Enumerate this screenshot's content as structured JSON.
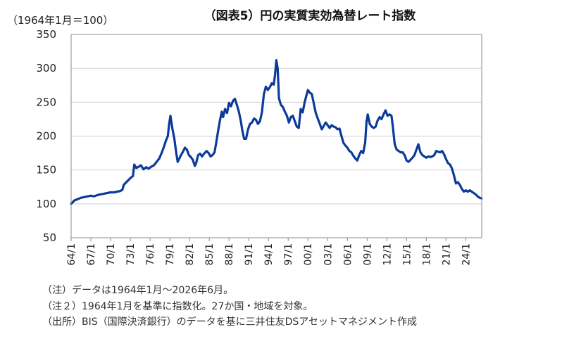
{
  "chart_data": {
    "type": "line",
    "title": "（図表5）円の実質実効為替レート指数",
    "unit_label": "（1964年1月＝100）",
    "xlabel": "",
    "ylabel": "",
    "ylim": [
      50,
      350
    ],
    "yticks": [
      "350",
      "300",
      "250",
      "200",
      "150",
      "100",
      "50"
    ],
    "xticks": [
      "64/1",
      "67/1",
      "70/1",
      "73/1",
      "76/1",
      "79/1",
      "82/1",
      "85/1",
      "88/1",
      "91/1",
      "94/1",
      "97/1",
      "00/1",
      "03/1",
      "06/1",
      "09/1",
      "12/1",
      "15/1",
      "18/1",
      "21/1",
      "24/1"
    ],
    "xlim": [
      1964.0,
      2026.42
    ],
    "grid": true,
    "series": [
      {
        "color": "#0b3a9a",
        "points": [
          [
            1964.0,
            100
          ],
          [
            1964.5,
            105
          ],
          [
            1965.0,
            107
          ],
          [
            1965.5,
            109
          ],
          [
            1966.0,
            110
          ],
          [
            1966.5,
            111
          ],
          [
            1967.0,
            112
          ],
          [
            1967.5,
            111
          ],
          [
            1968.0,
            113
          ],
          [
            1968.5,
            114
          ],
          [
            1969.0,
            115
          ],
          [
            1969.5,
            116
          ],
          [
            1970.0,
            117
          ],
          [
            1970.5,
            117
          ],
          [
            1971.0,
            118
          ],
          [
            1971.5,
            119
          ],
          [
            1971.8,
            121
          ],
          [
            1972.0,
            128
          ],
          [
            1972.5,
            133
          ],
          [
            1973.0,
            138
          ],
          [
            1973.4,
            141
          ],
          [
            1973.6,
            158
          ],
          [
            1973.9,
            153
          ],
          [
            1974.3,
            155
          ],
          [
            1974.6,
            157
          ],
          [
            1975.0,
            151
          ],
          [
            1975.4,
            154
          ],
          [
            1975.8,
            152
          ],
          [
            1976.2,
            155
          ],
          [
            1976.6,
            157
          ],
          [
            1977.0,
            162
          ],
          [
            1977.4,
            167
          ],
          [
            1977.8,
            176
          ],
          [
            1978.1,
            184
          ],
          [
            1978.4,
            193
          ],
          [
            1978.7,
            200
          ],
          [
            1978.9,
            218
          ],
          [
            1979.1,
            230
          ],
          [
            1979.4,
            211
          ],
          [
            1979.7,
            196
          ],
          [
            1980.0,
            174
          ],
          [
            1980.2,
            162
          ],
          [
            1980.4,
            166
          ],
          [
            1980.7,
            172
          ],
          [
            1981.0,
            177
          ],
          [
            1981.3,
            183
          ],
          [
            1981.6,
            180
          ],
          [
            1981.9,
            172
          ],
          [
            1982.2,
            169
          ],
          [
            1982.5,
            165
          ],
          [
            1982.8,
            156
          ],
          [
            1983.0,
            160
          ],
          [
            1983.3,
            172
          ],
          [
            1983.6,
            174
          ],
          [
            1983.9,
            170
          ],
          [
            1984.2,
            174
          ],
          [
            1984.6,
            178
          ],
          [
            1984.9,
            175
          ],
          [
            1985.2,
            170
          ],
          [
            1985.5,
            172
          ],
          [
            1985.8,
            176
          ],
          [
            1986.0,
            187
          ],
          [
            1986.3,
            205
          ],
          [
            1986.6,
            222
          ],
          [
            1986.9,
            236
          ],
          [
            1987.1,
            228
          ],
          [
            1987.4,
            240
          ],
          [
            1987.7,
            234
          ],
          [
            1988.0,
            249
          ],
          [
            1988.3,
            244
          ],
          [
            1988.6,
            252
          ],
          [
            1988.9,
            255
          ],
          [
            1989.2,
            246
          ],
          [
            1989.5,
            236
          ],
          [
            1989.8,
            222
          ],
          [
            1990.0,
            210
          ],
          [
            1990.3,
            196
          ],
          [
            1990.6,
            196
          ],
          [
            1990.9,
            210
          ],
          [
            1991.2,
            218
          ],
          [
            1991.5,
            220
          ],
          [
            1991.8,
            226
          ],
          [
            1992.1,
            224
          ],
          [
            1992.4,
            218
          ],
          [
            1992.7,
            222
          ],
          [
            1993.0,
            235
          ],
          [
            1993.3,
            262
          ],
          [
            1993.6,
            273
          ],
          [
            1993.9,
            268
          ],
          [
            1994.2,
            272
          ],
          [
            1994.5,
            278
          ],
          [
            1994.8,
            276
          ],
          [
            1995.0,
            290
          ],
          [
            1995.2,
            312
          ],
          [
            1995.4,
            300
          ],
          [
            1995.6,
            256
          ],
          [
            1995.9,
            246
          ],
          [
            1996.2,
            243
          ],
          [
            1996.5,
            236
          ],
          [
            1996.8,
            230
          ],
          [
            1997.1,
            220
          ],
          [
            1997.4,
            228
          ],
          [
            1997.7,
            230
          ],
          [
            1998.0,
            222
          ],
          [
            1998.3,
            214
          ],
          [
            1998.6,
            212
          ],
          [
            1998.9,
            240
          ],
          [
            1999.2,
            235
          ],
          [
            1999.5,
            250
          ],
          [
            1999.8,
            261
          ],
          [
            2000.0,
            268
          ],
          [
            2000.3,
            264
          ],
          [
            2000.6,
            262
          ],
          [
            2000.9,
            248
          ],
          [
            2001.2,
            234
          ],
          [
            2001.5,
            226
          ],
          [
            2001.8,
            218
          ],
          [
            2002.1,
            210
          ],
          [
            2002.4,
            215
          ],
          [
            2002.7,
            220
          ],
          [
            2003.0,
            216
          ],
          [
            2003.3,
            212
          ],
          [
            2003.6,
            216
          ],
          [
            2003.9,
            214
          ],
          [
            2004.2,
            213
          ],
          [
            2004.5,
            210
          ],
          [
            2004.8,
            211
          ],
          [
            2005.1,
            200
          ],
          [
            2005.4,
            190
          ],
          [
            2005.7,
            186
          ],
          [
            2006.0,
            183
          ],
          [
            2006.3,
            178
          ],
          [
            2006.6,
            176
          ],
          [
            2006.9,
            171
          ],
          [
            2007.2,
            167
          ],
          [
            2007.5,
            164
          ],
          [
            2007.8,
            172
          ],
          [
            2008.1,
            178
          ],
          [
            2008.4,
            175
          ],
          [
            2008.7,
            190
          ],
          [
            2008.9,
            221
          ],
          [
            2009.1,
            232
          ],
          [
            2009.4,
            218
          ],
          [
            2009.7,
            214
          ],
          [
            2010.0,
            212
          ],
          [
            2010.3,
            214
          ],
          [
            2010.6,
            223
          ],
          [
            2010.9,
            228
          ],
          [
            2011.2,
            225
          ],
          [
            2011.5,
            232
          ],
          [
            2011.8,
            238
          ],
          [
            2012.1,
            230
          ],
          [
            2012.4,
            232
          ],
          [
            2012.7,
            230
          ],
          [
            2012.9,
            215
          ],
          [
            2013.2,
            188
          ],
          [
            2013.5,
            180
          ],
          [
            2013.8,
            178
          ],
          [
            2014.1,
            176
          ],
          [
            2014.4,
            176
          ],
          [
            2014.7,
            172
          ],
          [
            2015.0,
            164
          ],
          [
            2015.3,
            162
          ],
          [
            2015.6,
            165
          ],
          [
            2015.9,
            168
          ],
          [
            2016.2,
            172
          ],
          [
            2016.5,
            180
          ],
          [
            2016.8,
            188
          ],
          [
            2017.1,
            176
          ],
          [
            2017.4,
            172
          ],
          [
            2017.7,
            170
          ],
          [
            2018.0,
            168
          ],
          [
            2018.3,
            170
          ],
          [
            2018.6,
            169
          ],
          [
            2018.9,
            170
          ],
          [
            2019.2,
            172
          ],
          [
            2019.5,
            178
          ],
          [
            2019.8,
            177
          ],
          [
            2020.1,
            176
          ],
          [
            2020.4,
            178
          ],
          [
            2020.7,
            173
          ],
          [
            2021.0,
            166
          ],
          [
            2021.3,
            160
          ],
          [
            2021.6,
            158
          ],
          [
            2021.9,
            152
          ],
          [
            2022.2,
            142
          ],
          [
            2022.5,
            130
          ],
          [
            2022.8,
            132
          ],
          [
            2023.1,
            128
          ],
          [
            2023.4,
            122
          ],
          [
            2023.7,
            118
          ],
          [
            2024.0,
            120
          ],
          [
            2024.3,
            118
          ],
          [
            2024.6,
            120
          ],
          [
            2024.9,
            118
          ],
          [
            2025.2,
            116
          ],
          [
            2025.5,
            114
          ],
          [
            2025.8,
            111
          ],
          [
            2026.1,
            109
          ],
          [
            2026.42,
            108
          ]
        ]
      }
    ]
  },
  "notes": [
    "（注）データは1964年1月～2026年6月。",
    "（注２）1964年1月を基準に指数化。27か国・地域を対象。",
    "（出所）BIS（国際決済銀行）のデータを基に三井住友DSアセットマネジメント作成"
  ]
}
